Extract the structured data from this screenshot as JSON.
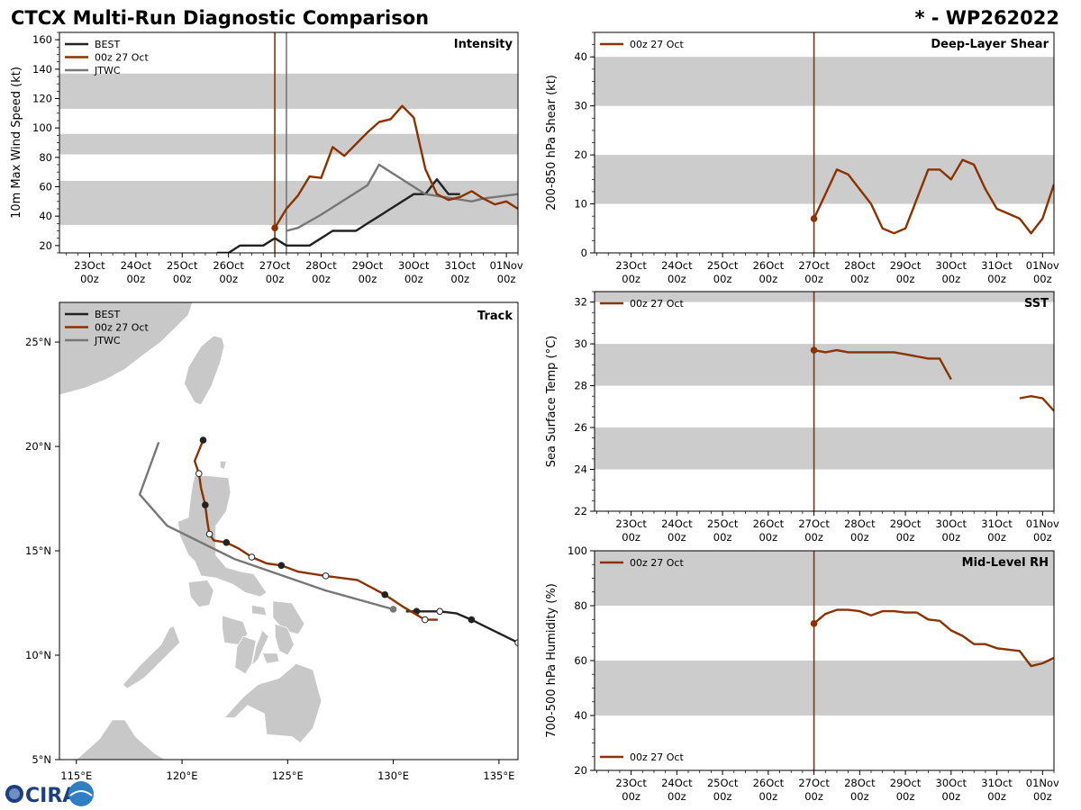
{
  "title": "CTCX Multi-Run Diagnostic Comparison",
  "storm_label": "* - WP262022",
  "logo_text": "CIRA",
  "colors": {
    "best": "#222222",
    "run": "#8b3200",
    "jtwc": "#777777",
    "band": "#cccccc",
    "land": "#c8c8c8"
  },
  "time_ticks": [
    {
      "t": 0,
      "day": "23Oct",
      "hour": "00z"
    },
    {
      "t": 1,
      "day": "24Oct",
      "hour": "00z"
    },
    {
      "t": 2,
      "day": "25Oct",
      "hour": "00z"
    },
    {
      "t": 3,
      "day": "26Oct",
      "hour": "00z"
    },
    {
      "t": 4,
      "day": "27Oct",
      "hour": "00z"
    },
    {
      "t": 5,
      "day": "28Oct",
      "hour": "00z"
    },
    {
      "t": 6,
      "day": "29Oct",
      "hour": "00z"
    },
    {
      "t": 7,
      "day": "30Oct",
      "hour": "00z"
    },
    {
      "t": 8,
      "day": "31Oct",
      "hour": "00z"
    },
    {
      "t": 9,
      "day": "01Nov",
      "hour": "00z"
    }
  ],
  "chart_data": [
    {
      "id": "intensity",
      "type": "line",
      "title": "Intensity",
      "ylabel": "10m Max Wind Speed (kt)",
      "xlim": [
        -0.65,
        9.25
      ],
      "ylim": [
        15,
        165
      ],
      "yticks": [
        20,
        40,
        60,
        80,
        100,
        120,
        140,
        160
      ],
      "bands": [
        [
          34,
          64
        ],
        [
          82,
          96
        ],
        [
          113,
          137
        ]
      ],
      "vlines": [
        {
          "x": 4.0,
          "color": "run"
        },
        {
          "x": 4.25,
          "color": "jtwc"
        }
      ],
      "legend": [
        "BEST",
        "00z 27 Oct",
        "JTWC"
      ],
      "series": [
        {
          "name": "BEST",
          "color": "best",
          "x": [
            2.75,
            3.0,
            3.25,
            3.5,
            3.75,
            4.0,
            4.25,
            4.5,
            4.75,
            5.0,
            5.25,
            5.5,
            5.75,
            6.0,
            6.25,
            6.5,
            6.75,
            7.0,
            7.25,
            7.5,
            7.75,
            8.0
          ],
          "y": [
            15,
            15,
            20,
            20,
            20,
            25,
            20,
            20,
            20,
            25,
            30,
            30,
            30,
            35,
            40,
            45,
            50,
            55,
            55,
            65,
            55,
            55
          ]
        },
        {
          "name": "JTWC",
          "color": "jtwc",
          "x": [
            4.25,
            4.5,
            5.0,
            6.0,
            6.25,
            7.25,
            8.25,
            8.5,
            9.25
          ],
          "y": [
            30,
            32,
            41,
            61,
            75,
            55,
            50,
            52,
            55
          ]
        },
        {
          "name": "00z 27 Oct",
          "color": "run",
          "marker": "start",
          "x": [
            4.0,
            4.25,
            4.5,
            4.75,
            5.0,
            5.25,
            5.5,
            5.75,
            6.0,
            6.25,
            6.5,
            6.75,
            7.0,
            7.25,
            7.5,
            7.75,
            8.0,
            8.25,
            8.5,
            8.75,
            9.0,
            9.25
          ],
          "y": [
            32,
            45,
            54,
            67,
            66,
            87,
            81,
            89,
            97,
            104,
            106,
            115,
            107,
            72,
            55,
            51,
            53,
            57,
            52,
            48,
            50,
            45
          ]
        }
      ]
    },
    {
      "id": "shear",
      "type": "line",
      "title": "Deep-Layer Shear",
      "ylabel": "200-850 hPa Shear (kt)",
      "xlim": [
        -0.8,
        9.25
      ],
      "ylim": [
        0,
        45
      ],
      "yticks": [
        0,
        10,
        20,
        30,
        40
      ],
      "bands": [
        [
          10,
          20
        ],
        [
          30,
          40
        ]
      ],
      "vlines": [
        {
          "x": 4.0,
          "color": "run"
        }
      ],
      "legend": [
        "00z 27 Oct"
      ],
      "series": [
        {
          "name": "00z 27 Oct",
          "color": "run",
          "marker": "start",
          "x": [
            4.0,
            4.25,
            4.5,
            4.75,
            5.0,
            5.25,
            5.5,
            5.75,
            6.0,
            6.25,
            6.5,
            6.75,
            7.0,
            7.25,
            7.5,
            7.75,
            8.0,
            8.25,
            8.5,
            8.75,
            9.0,
            9.25
          ],
          "y": [
            7,
            12,
            17,
            16,
            13,
            10,
            5,
            4,
            5,
            11,
            17,
            17,
            15,
            19,
            18,
            13,
            9,
            8,
            7,
            4,
            7,
            14
          ]
        }
      ]
    },
    {
      "id": "sst",
      "type": "line",
      "title": "SST",
      "ylabel": "Sea Surface Temp (°C)",
      "xlim": [
        -0.8,
        9.25
      ],
      "ylim": [
        22,
        32.5
      ],
      "yticks": [
        22,
        24,
        26,
        28,
        30,
        32
      ],
      "bands": [
        [
          24,
          26
        ],
        [
          28,
          30
        ],
        [
          32,
          34
        ]
      ],
      "vlines": [
        {
          "x": 4.0,
          "color": "run"
        }
      ],
      "legend": [
        "00z 27 Oct"
      ],
      "series": [
        {
          "name": "00z 27 Oct",
          "color": "run",
          "marker": "start",
          "x": [
            4.0,
            4.25,
            4.5,
            4.75,
            5.0,
            5.25,
            5.5,
            5.75,
            6.0,
            6.25,
            6.5,
            6.75,
            7.0
          ],
          "y": [
            29.7,
            29.6,
            29.7,
            29.6,
            29.6,
            29.6,
            29.6,
            29.6,
            29.5,
            29.4,
            29.3,
            29.3,
            28.3
          ]
        },
        {
          "name": "00z 27 Oct (cont.)",
          "color": "run",
          "x": [
            8.5,
            8.75,
            9.0,
            9.25
          ],
          "y": [
            27.4,
            27.5,
            27.4,
            26.8
          ]
        }
      ]
    },
    {
      "id": "rh",
      "type": "line",
      "title": "Mid-Level RH",
      "ylabel": "700-500 hPa Humidity (%)",
      "xlim": [
        -0.8,
        9.25
      ],
      "ylim": [
        20,
        100
      ],
      "yticks": [
        20,
        40,
        60,
        80,
        100
      ],
      "bands": [
        [
          40,
          60
        ],
        [
          80,
          100
        ]
      ],
      "vlines": [
        {
          "x": 4.0,
          "color": "run"
        }
      ],
      "legend": [
        "00z 27 Oct"
      ],
      "series": [
        {
          "name": "00z 27 Oct",
          "color": "run",
          "marker": "start",
          "x": [
            4.0,
            4.25,
            4.5,
            4.75,
            5.0,
            5.25,
            5.5,
            5.75,
            6.0,
            6.25,
            6.5,
            6.75,
            7.0,
            7.25,
            7.5,
            7.75,
            8.0,
            8.25,
            8.5,
            8.75,
            9.0,
            9.25
          ],
          "y": [
            73.5,
            77,
            78.5,
            78.5,
            78,
            76.5,
            78,
            78,
            77.5,
            77.5,
            75,
            74.5,
            71,
            69,
            66,
            66,
            64.5,
            64,
            63.5,
            58,
            59,
            61
          ]
        }
      ]
    },
    {
      "id": "track",
      "type": "scatter",
      "title": "Track",
      "xlim": [
        114.2,
        135.9
      ],
      "ylim": [
        5,
        26.9
      ],
      "xticks": [
        {
          "v": 115,
          "label": "115°E"
        },
        {
          "v": 120,
          "label": "120°E"
        },
        {
          "v": 125,
          "label": "125°E"
        },
        {
          "v": 130,
          "label": "130°E"
        },
        {
          "v": 135,
          "label": "135°E"
        }
      ],
      "yticks": [
        {
          "v": 5,
          "label": "5°N"
        },
        {
          "v": 10,
          "label": "10°N"
        },
        {
          "v": 15,
          "label": "15°N"
        },
        {
          "v": 20,
          "label": "20°N"
        },
        {
          "v": 25,
          "label": "25°N"
        }
      ],
      "legend": [
        "BEST",
        "00z 27 Oct",
        "JTWC"
      ],
      "series": [
        {
          "name": "BEST",
          "color": "best",
          "lon": [
            135.9,
            135.3,
            134.5,
            133.7,
            133.0,
            132.2,
            131.1,
            130.6
          ],
          "lat": [
            10.6,
            10.9,
            11.3,
            11.7,
            12.0,
            12.1,
            12.1,
            12.1
          ],
          "markers": [
            {
              "lon": 135.9,
              "lat": 10.6,
              "fill": "open"
            },
            {
              "lon": 133.7,
              "lat": 11.7,
              "fill": "solid"
            },
            {
              "lon": 132.2,
              "lat": 12.1,
              "fill": "open"
            },
            {
              "lon": 131.1,
              "lat": 12.1,
              "fill": "solid"
            }
          ]
        },
        {
          "name": "JTWC",
          "color": "jtwc",
          "marker": "start",
          "lon": [
            130.0,
            126.8,
            122.5,
            119.3,
            118.0,
            118.9
          ],
          "lat": [
            12.2,
            13.1,
            14.6,
            16.2,
            17.7,
            20.2
          ]
        },
        {
          "name": "00z 27 Oct",
          "color": "run",
          "lon": [
            132.1,
            131.5,
            130.5,
            129.6,
            128.3,
            126.8,
            125.5,
            124.7,
            124.0,
            123.3,
            122.7,
            122.1,
            121.5,
            121.3,
            121.2,
            121.1,
            120.9,
            120.8,
            120.6,
            121.0
          ],
          "lat": [
            11.7,
            11.7,
            12.3,
            12.9,
            13.6,
            13.8,
            14.0,
            14.3,
            14.4,
            14.7,
            15.1,
            15.4,
            15.5,
            15.8,
            16.4,
            17.2,
            18.0,
            18.7,
            19.3,
            20.3
          ],
          "markers": [
            {
              "lon": 131.5,
              "lat": 11.7,
              "fill": "open"
            },
            {
              "lon": 129.6,
              "lat": 12.9,
              "fill": "solid"
            },
            {
              "lon": 126.8,
              "lat": 13.8,
              "fill": "open"
            },
            {
              "lon": 124.7,
              "lat": 14.3,
              "fill": "solid"
            },
            {
              "lon": 123.3,
              "lat": 14.7,
              "fill": "open"
            },
            {
              "lon": 122.1,
              "lat": 15.4,
              "fill": "solid"
            },
            {
              "lon": 121.3,
              "lat": 15.8,
              "fill": "open"
            },
            {
              "lon": 121.1,
              "lat": 17.2,
              "fill": "solid"
            },
            {
              "lon": 120.8,
              "lat": 18.7,
              "fill": "open"
            },
            {
              "lon": 121.0,
              "lat": 20.3,
              "fill": "solid"
            }
          ]
        }
      ]
    }
  ]
}
